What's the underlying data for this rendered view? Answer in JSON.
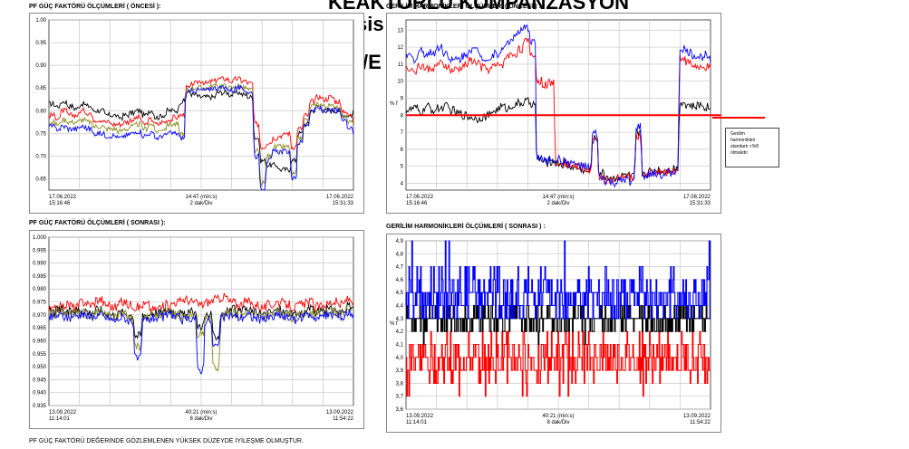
{
  "overlay_text": {
    "line1": "KEAKTÖRLÜ KOMPANZASYON",
    "line2": "sis",
    "line3": "/E"
  },
  "note": {
    "lines": [
      "Gerilim",
      "harmonikleri",
      "standartı <%8",
      "olmalıdır"
    ]
  },
  "footer": "PF GÜÇ FAKTÖRÜ DEĞERİNDE GÖZLEMLENEN YÜKSEK DÜZEYDE İYİLEŞME OLMUŞTUR.",
  "colors": {
    "red": "#ff0000",
    "blue": "#0000ff",
    "black": "#000000",
    "olive": "#8c8c1e",
    "limit": "#ff0000"
  },
  "chart_data": [
    {
      "id": "pf-before",
      "type": "line",
      "title": "PF GÜÇ FAKTÖRÜ ÖLÇÜMLERİ ( ÖNCESİ ):",
      "ylim": [
        0.625,
        1.0
      ],
      "yticks": [
        "1.00",
        "0.95",
        "0.90",
        "0.85",
        "0.80",
        "0.75",
        "0.70",
        "0.65"
      ],
      "ytick_values": [
        1.0,
        0.95,
        0.9,
        0.85,
        0.8,
        0.75,
        0.7,
        0.65
      ],
      "ylabel": "",
      "x_labels": {
        "left_date": "17.06.2022",
        "left_time": "15:16:46",
        "center_top": "14:47 (min:s)",
        "center_bottom": "2 dak/Div",
        "right_date": "17.06.2022",
        "right_time": "15:31:33"
      },
      "grid": true,
      "noise": 0.006,
      "series": [
        {
          "color": "black",
          "values": [
            0.815,
            0.81,
            0.82,
            0.81,
            0.805,
            0.815,
            0.81,
            0.8,
            0.8,
            0.79,
            0.79,
            0.785,
            0.79,
            0.795,
            0.8,
            0.79,
            0.8,
            0.785,
            0.79,
            0.8,
            0.8,
            0.82,
            0.84,
            0.835,
            0.83,
            0.83,
            0.83,
            0.84,
            0.84,
            0.835,
            0.84,
            0.835,
            0.83,
            0.74,
            0.69,
            0.68,
            0.68,
            0.67,
            0.67,
            0.69,
            0.75,
            0.77,
            0.8,
            0.81,
            0.8,
            0.8,
            0.8,
            0.79,
            0.79,
            0.8
          ]
        },
        {
          "color": "red",
          "values": [
            0.79,
            0.785,
            0.8,
            0.79,
            0.79,
            0.8,
            0.795,
            0.78,
            0.78,
            0.775,
            0.77,
            0.77,
            0.775,
            0.78,
            0.785,
            0.77,
            0.78,
            0.77,
            0.775,
            0.78,
            0.785,
            0.79,
            0.85,
            0.86,
            0.865,
            0.86,
            0.865,
            0.87,
            0.87,
            0.865,
            0.87,
            0.865,
            0.86,
            0.77,
            0.72,
            0.73,
            0.74,
            0.745,
            0.75,
            0.72,
            0.76,
            0.79,
            0.82,
            0.83,
            0.825,
            0.83,
            0.82,
            0.8,
            0.79,
            0.78
          ]
        },
        {
          "color": "olive",
          "values": [
            0.775,
            0.77,
            0.78,
            0.775,
            0.775,
            0.78,
            0.775,
            0.765,
            0.765,
            0.76,
            0.76,
            0.755,
            0.76,
            0.765,
            0.77,
            0.76,
            0.77,
            0.755,
            0.76,
            0.77,
            0.77,
            0.75,
            0.845,
            0.85,
            0.85,
            0.85,
            0.855,
            0.855,
            0.855,
            0.85,
            0.855,
            0.85,
            0.845,
            0.71,
            0.64,
            0.7,
            0.72,
            0.72,
            0.72,
            0.66,
            0.74,
            0.78,
            0.81,
            0.815,
            0.81,
            0.81,
            0.81,
            0.79,
            0.775,
            0.77
          ]
        },
        {
          "color": "blue",
          "values": [
            0.765,
            0.76,
            0.765,
            0.76,
            0.76,
            0.765,
            0.76,
            0.75,
            0.75,
            0.745,
            0.745,
            0.74,
            0.745,
            0.75,
            0.755,
            0.745,
            0.75,
            0.74,
            0.745,
            0.75,
            0.75,
            0.74,
            0.84,
            0.845,
            0.845,
            0.845,
            0.85,
            0.85,
            0.85,
            0.845,
            0.85,
            0.845,
            0.84,
            0.7,
            0.63,
            0.69,
            0.71,
            0.71,
            0.71,
            0.65,
            0.73,
            0.77,
            0.8,
            0.805,
            0.8,
            0.8,
            0.8,
            0.78,
            0.765,
            0.75
          ]
        }
      ]
    },
    {
      "id": "harm-before",
      "type": "line",
      "title": "GERİLİM HARMONİKLERİ ÖLÇÜMLERİ ( ÖNCESİ ) :",
      "ylim": [
        3.6,
        13.6
      ],
      "yticks": [
        "13",
        "12",
        "11",
        "10",
        "9",
        "8",
        "7",
        "6",
        "5",
        "4"
      ],
      "ytick_values": [
        13,
        12,
        11,
        10,
        9,
        8,
        7,
        6,
        5,
        4
      ],
      "ylabel": "% f",
      "x_labels": {
        "left_date": "17.06.2022",
        "left_time": "15:16:46",
        "center_top": "14:47 (min:s)",
        "center_bottom": "2 dak/Div",
        "right_date": "17.06.2022",
        "right_time": "15:31:33"
      },
      "grid": true,
      "noise": 0.25,
      "limit": {
        "value": 8.0,
        "color": "limit"
      },
      "series": [
        {
          "color": "black",
          "values": [
            8.3,
            8.4,
            8.2,
            8.5,
            8.3,
            8.4,
            8.5,
            8.3,
            8.1,
            8.0,
            7.9,
            7.8,
            7.9,
            8.0,
            8.3,
            8.5,
            8.4,
            8.6,
            8.7,
            8.8,
            8.7,
            5.4,
            5.2,
            5.3,
            5.2,
            5.1,
            5.0,
            4.9,
            4.8,
            4.7,
            6.6,
            4.6,
            4.4,
            4.3,
            4.4,
            4.5,
            4.4,
            6.9,
            4.6,
            4.7,
            4.8,
            4.7,
            4.8,
            4.9,
            8.8,
            8.6,
            8.5,
            8.6,
            8.5,
            8.4
          ]
        },
        {
          "color": "red",
          "values": [
            10.8,
            10.6,
            10.9,
            10.7,
            10.8,
            11.0,
            10.9,
            10.6,
            10.7,
            10.9,
            11.2,
            11.1,
            10.8,
            10.7,
            10.9,
            11.0,
            11.5,
            11.6,
            11.9,
            12.3,
            11.6,
            10.0,
            9.8,
            9.9,
            5.3,
            5.2,
            5.1,
            5.0,
            4.9,
            4.8,
            6.5,
            4.4,
            4.2,
            4.1,
            4.3,
            4.4,
            4.3,
            6.8,
            4.5,
            4.6,
            4.7,
            4.6,
            4.7,
            4.8,
            11.4,
            11.1,
            10.9,
            10.7,
            10.8,
            10.6
          ]
        },
        {
          "color": "blue",
          "values": [
            11.5,
            11.3,
            11.8,
            11.6,
            11.7,
            12.0,
            11.7,
            11.2,
            11.3,
            11.5,
            11.9,
            11.8,
            11.4,
            11.3,
            11.6,
            11.8,
            12.3,
            12.6,
            12.9,
            13.1,
            12.4,
            5.5,
            5.3,
            5.4,
            5.4,
            5.3,
            5.2,
            5.1,
            5.0,
            4.9,
            6.9,
            4.3,
            4.1,
            4.0,
            4.1,
            4.2,
            4.1,
            7.3,
            4.4,
            4.5,
            4.6,
            4.5,
            4.6,
            4.7,
            11.9,
            11.7,
            11.5,
            11.4,
            11.6,
            11.3
          ]
        }
      ]
    },
    {
      "id": "pf-after",
      "type": "line",
      "title": "PF GÜÇ FAKTÖRÜ ÖLÇÜMLERİ ( SONRASI ):",
      "ylim": [
        0.935,
        1.0
      ],
      "yticks": [
        "1.000",
        "0.995",
        "0.990",
        "0.985",
        "0.980",
        "0.975",
        "0.970",
        "0.965",
        "0.960",
        "0.955",
        "0.950",
        "0.945",
        "0.940",
        "0.935"
      ],
      "ytick_values": [
        1.0,
        0.995,
        0.99,
        0.985,
        0.98,
        0.975,
        0.97,
        0.965,
        0.96,
        0.955,
        0.95,
        0.945,
        0.94,
        0.935
      ],
      "ylabel": "",
      "x_labels": {
        "left_date": "13.09.2022",
        "left_time": "11:14:01",
        "center_top": "40:21 (min:s)",
        "center_bottom": "8 dak/Div",
        "right_date": "13.09.2022",
        "right_time": "11:54:22"
      },
      "grid": true,
      "noise": 0.0018,
      "series": [
        {
          "color": "red",
          "values": [
            0.972,
            0.973,
            0.974,
            0.973,
            0.975,
            0.974,
            0.976,
            0.974,
            0.973,
            0.975,
            0.974,
            0.973,
            0.974,
            0.972,
            0.973,
            0.974,
            0.975,
            0.976,
            0.975,
            0.974,
            0.975,
            0.976,
            0.977,
            0.975,
            0.974,
            0.975,
            0.974,
            0.973,
            0.974,
            0.975,
            0.974,
            0.973,
            0.974,
            0.975,
            0.973,
            0.974,
            0.975,
            0.974,
            0.976,
            0.975
          ]
        },
        {
          "color": "black",
          "values": [
            0.971,
            0.972,
            0.971,
            0.972,
            0.972,
            0.971,
            0.972,
            0.971,
            0.97,
            0.971,
            0.97,
            0.962,
            0.97,
            0.971,
            0.971,
            0.972,
            0.971,
            0.97,
            0.971,
            0.966,
            0.97,
            0.962,
            0.971,
            0.972,
            0.971,
            0.972,
            0.971,
            0.97,
            0.971,
            0.972,
            0.971,
            0.97,
            0.971,
            0.972,
            0.971,
            0.972,
            0.972,
            0.971,
            0.973,
            0.972
          ]
        },
        {
          "color": "olive",
          "values": [
            0.97,
            0.971,
            0.97,
            0.971,
            0.971,
            0.97,
            0.971,
            0.97,
            0.969,
            0.97,
            0.969,
            0.958,
            0.969,
            0.97,
            0.97,
            0.971,
            0.97,
            0.969,
            0.97,
            0.962,
            0.969,
            0.95,
            0.97,
            0.971,
            0.97,
            0.971,
            0.97,
            0.969,
            0.97,
            0.971,
            0.97,
            0.969,
            0.97,
            0.971,
            0.97,
            0.971,
            0.971,
            0.97,
            0.972,
            0.971
          ]
        },
        {
          "color": "blue",
          "values": [
            0.969,
            0.97,
            0.969,
            0.97,
            0.97,
            0.969,
            0.97,
            0.969,
            0.968,
            0.969,
            0.968,
            0.953,
            0.968,
            0.969,
            0.969,
            0.97,
            0.969,
            0.968,
            0.969,
            0.949,
            0.968,
            0.958,
            0.969,
            0.97,
            0.969,
            0.97,
            0.969,
            0.968,
            0.969,
            0.97,
            0.969,
            0.968,
            0.969,
            0.97,
            0.969,
            0.97,
            0.97,
            0.969,
            0.971,
            0.97
          ]
        }
      ]
    },
    {
      "id": "harm-after",
      "type": "line",
      "title": "GERİLİM HARMONİKLERİ ÖLÇÜMLERİ ( SONRASI ) :",
      "ylim": [
        3.6,
        4.9
      ],
      "yticks": [
        "4,9",
        "4,8",
        "4,7",
        "4,6",
        "4,5",
        "4,4",
        "4,3",
        "4,2",
        "4,1",
        "4,0",
        "3,9",
        "3,8",
        "3,7",
        "3,6"
      ],
      "ytick_values": [
        4.9,
        4.8,
        4.7,
        4.6,
        4.5,
        4.4,
        4.3,
        4.2,
        4.1,
        4.0,
        3.9,
        3.8,
        3.7,
        3.6
      ],
      "ylabel": "% f",
      "x_labels": {
        "left_date": "13.09.2022",
        "left_time": "11:14:01",
        "center_top": "40:21 (min:s)",
        "center_bottom": "8 dak/Div",
        "right_date": "13.09.2022",
        "right_time": "11:54:22"
      },
      "grid": true,
      "step": true,
      "series": [
        {
          "color": "red",
          "levels": [
            3.8,
            3.9,
            4.0,
            4.1,
            4.2
          ],
          "weights": [
            1,
            4,
            5,
            3,
            1
          ],
          "spike": 3.7
        },
        {
          "color": "black",
          "levels": [
            4.2,
            4.3,
            4.4
          ],
          "weights": [
            2,
            5,
            2
          ],
          "spike": 4.1
        },
        {
          "color": "blue",
          "levels": [
            4.3,
            4.4,
            4.5,
            4.6,
            4.7
          ],
          "weights": [
            2,
            4,
            4,
            2,
            1
          ],
          "spike": 4.9
        }
      ]
    }
  ]
}
